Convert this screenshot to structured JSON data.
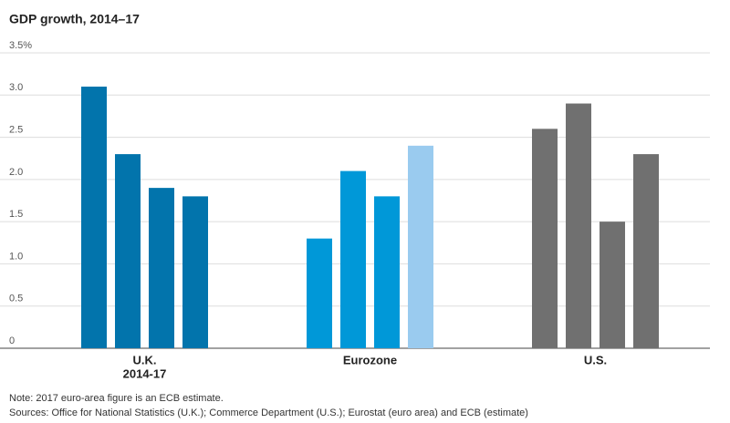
{
  "chart_data": {
    "type": "bar",
    "title": "GDP growth, 2014–17",
    "groups": [
      {
        "name": "U.K.",
        "subtitle": "2014-17",
        "values": [
          3.1,
          2.3,
          1.9,
          1.8
        ],
        "colors": [
          "#0274ac",
          "#0274ac",
          "#0274ac",
          "#0274ac"
        ]
      },
      {
        "name": "Eurozone",
        "values": [
          1.3,
          2.1,
          1.8,
          2.4
        ],
        "colors": [
          "#0098d8",
          "#0098d8",
          "#0098d8",
          "#9acbef"
        ]
      },
      {
        "name": "U.S.",
        "values": [
          2.6,
          2.9,
          1.5,
          2.3
        ],
        "colors": [
          "#707070",
          "#707070",
          "#707070",
          "#707070"
        ]
      }
    ],
    "ylim": [
      0,
      3.5
    ],
    "yticks": [
      0,
      0.5,
      {
        "value": 1,
        "label": "1.0"
      },
      1.5,
      {
        "value": 2,
        "label": "2.0"
      },
      2.5,
      {
        "value": 3,
        "label": "3.0"
      },
      {
        "value": 3.5,
        "label": "3.5%"
      }
    ],
    "grid": true,
    "note": "Note: 2017 euro-area figure is an ECB estimate.",
    "source": "Sources: Office for National Statistics (U.K.); Commerce Department (U.S.); Eurostat (euro area) and ECB (estimate)"
  }
}
